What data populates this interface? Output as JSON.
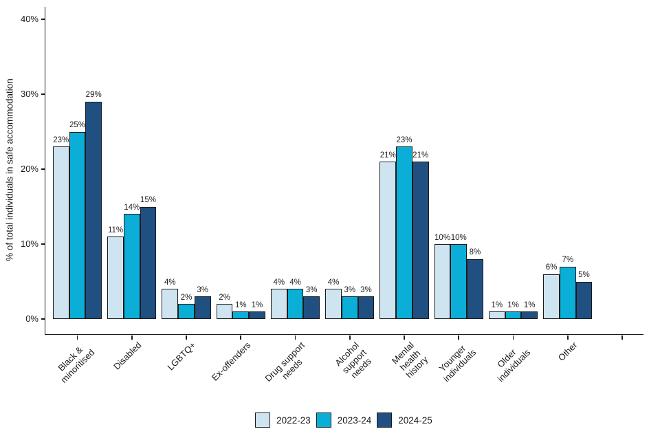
{
  "chart_data": {
    "type": "bar",
    "title": "",
    "xlabel": "",
    "ylabel": "% of total individuals in safe accommodation",
    "ylim": [
      0,
      41.6
    ],
    "yticks": [
      0,
      10,
      20,
      30,
      40
    ],
    "ytick_labels": [
      "0%",
      "10%",
      "20%",
      "30%",
      "40%"
    ],
    "grid": false,
    "legend_position": "bottom",
    "value_label_suffix": "%",
    "axis_color": "#1a1a1a",
    "text_color": "#1a1a1a",
    "background_color": "#ffffff",
    "bar_border_color": "#1a1a1a",
    "extra_unlabeled_ticks": 1,
    "categories": [
      "Black &\nminoritised",
      "Disabled",
      "LGBTQ+",
      "Ex-offenders",
      "Drug support\nneeds",
      "Alcohol\nsupport\nneeds",
      "Mental\nhealth\nhistory",
      "Younger\nindividuals",
      "Older\nindividuals",
      "Other"
    ],
    "series": [
      {
        "name": "2022-23",
        "color": "#cfe4f1",
        "values": [
          23,
          11,
          4,
          2,
          4,
          4,
          21,
          10,
          1,
          6
        ]
      },
      {
        "name": "2023-24",
        "color": "#0aaed6",
        "values": [
          25,
          14,
          2,
          1,
          4,
          3,
          23,
          10,
          1,
          7
        ]
      },
      {
        "name": "2024-25",
        "color": "#204f81",
        "values": [
          29,
          15,
          3,
          1,
          3,
          3,
          21,
          8,
          1,
          5
        ]
      }
    ]
  }
}
